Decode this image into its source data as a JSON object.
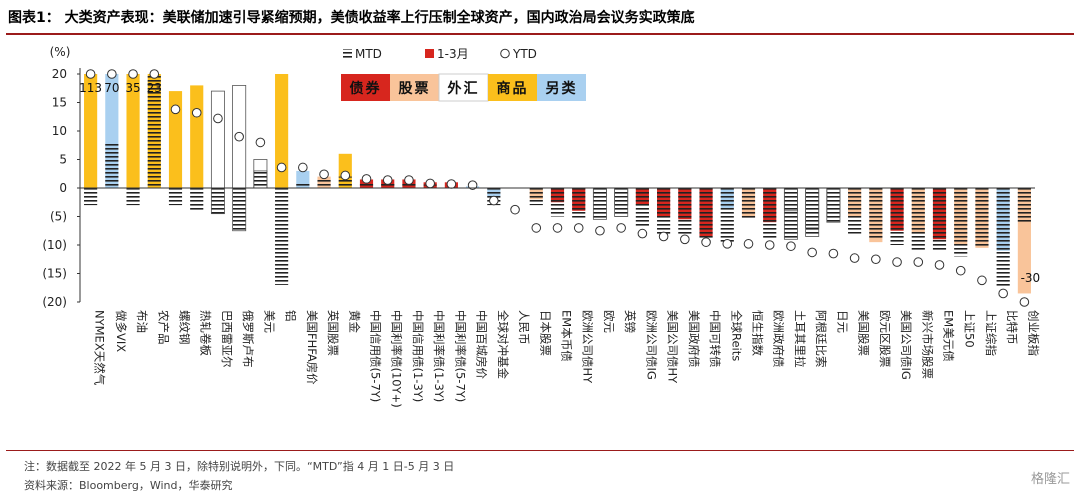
{
  "header": {
    "title": "图表1：  大类资产表现：美联储加速引导紧缩预期，美债收益率上行压制全球资产，国内政治局会议务实政策底"
  },
  "footer": {
    "note": "注：数据截至 2022 年 5 月 3 日，除特别说明外，下同。“MTD”指 4 月 1 日-5 月 3 日",
    "source": "资料来源：Bloomberg，Wind，华泰研究",
    "logo": "格隆汇"
  },
  "colors": {
    "bond": "#d7261e",
    "equity": "#f9c49a",
    "fx": "#ffffff",
    "commodity": "#fbbf1c",
    "alt": "#a9d0f0",
    "axis": "#333333"
  },
  "chart_data": {
    "type": "bar",
    "yunit": "(%)",
    "ylim": [
      -20,
      20
    ],
    "yticks": [
      20,
      15,
      10,
      5,
      0,
      -5,
      -10,
      -15,
      -20
    ],
    "ytick_labels": [
      "20",
      "15",
      "10",
      "5",
      "0",
      "(5)",
      "(10)",
      "(15)",
      "(20)"
    ],
    "legend": [
      {
        "key": "mtd",
        "label": "MTD"
      },
      {
        "key": "q",
        "label": "1-3月"
      },
      {
        "key": "ytd",
        "label": "YTD"
      }
    ],
    "category_legend": [
      {
        "key": "bond",
        "label": "债券"
      },
      {
        "key": "equity",
        "label": "股票"
      },
      {
        "key": "fx",
        "label": "外汇"
      },
      {
        "key": "commodity",
        "label": "商品"
      },
      {
        "key": "alt",
        "label": "另类"
      }
    ],
    "overflow_labels": [
      "113",
      "70",
      "35",
      "23",
      "-30"
    ],
    "categories": [
      "NYMEX天然气",
      "做多VIX",
      "布油",
      "农产品",
      "螺纹钢",
      "热轧卷板",
      "巴西雷亚尔",
      "俄罗斯卢布",
      "美元",
      "铝",
      "美国FHFA房价",
      "英国股票",
      "黄金",
      "中国信用债(5-7Y)",
      "中国利率债(10Y+)",
      "中国信用债(1-3Y)",
      "中国利率债(1-3Y)",
      "中国利率债(5-7Y)",
      "中国百城房价",
      "全球对冲基金",
      "人民币",
      "日本股票",
      "EM本币债",
      "欧洲公司债HY",
      "欧元",
      "英镑",
      "欧洲公司债IG",
      "美国公司债HY",
      "美国政府债",
      "中国可转债",
      "全球Reits",
      "恒生指数",
      "欧洲政府债",
      "土耳其里拉",
      "阿根廷比索",
      "日元",
      "美国股票",
      "欧元区股票",
      "美国公司债IG",
      "新兴市场股票",
      "EM美元债",
      "上证50",
      "上证综指",
      "比特币",
      "创业板指"
    ],
    "asset_class": [
      "commodity",
      "alt",
      "commodity",
      "commodity",
      "commodity",
      "commodity",
      "fx",
      "fx",
      "fx",
      "commodity",
      "alt",
      "equity",
      "commodity",
      "bond",
      "bond",
      "bond",
      "bond",
      "bond",
      "alt",
      "alt",
      "fx",
      "equity",
      "bond",
      "bond",
      "fx",
      "fx",
      "bond",
      "bond",
      "bond",
      "bond",
      "alt",
      "equity",
      "bond",
      "fx",
      "fx",
      "fx",
      "equity",
      "equity",
      "bond",
      "equity",
      "bond",
      "equity",
      "equity",
      "alt",
      "equity"
    ],
    "series": [
      {
        "name": "MTD",
        "values": [
          -3,
          8,
          -3,
          20,
          -3,
          -4,
          -4.5,
          -7.5,
          3,
          -17,
          1,
          1.5,
          2,
          1,
          0.8,
          0.8,
          0.6,
          0.4,
          0.2,
          -3,
          0,
          -3,
          -5,
          -5.2,
          -5.5,
          -5,
          -7,
          -8.2,
          -8.3,
          -9,
          -9.5,
          -5.5,
          -9,
          -9,
          -8.5,
          -6,
          -8,
          -9,
          -10,
          -11,
          -11,
          -12,
          -10.5,
          -17.5,
          -6
        ]
      },
      {
        "name": "1-3月",
        "values": [
          20,
          20,
          20,
          20,
          17,
          18,
          17,
          18,
          5,
          20,
          3,
          2,
          6,
          1.5,
          1.5,
          1.5,
          1,
          1,
          0.3,
          -1.5,
          0,
          -2,
          -2.5,
          -4,
          -1.5,
          -3,
          -3,
          -5,
          -5.5,
          -8.5,
          -3.5,
          -5,
          -6,
          -4,
          -7,
          -5,
          -5,
          -9.5,
          -7.5,
          -8,
          -9,
          -10,
          -10.5,
          -11,
          -18.5
        ]
      },
      {
        "name": "YTD",
        "values": [
          20,
          20,
          20,
          20,
          13.8,
          13.2,
          12.2,
          9,
          8,
          3.6,
          3.6,
          2.4,
          2.2,
          1.6,
          1.4,
          1.4,
          0.8,
          0.7,
          0.5,
          -2.2,
          -3.8,
          -7,
          -7,
          -7,
          -7.5,
          -7,
          -8,
          -8.5,
          -9,
          -9.5,
          -9.8,
          -9.8,
          -10,
          -10.2,
          -11.3,
          -11.5,
          -12.3,
          -12.5,
          -13,
          -13,
          -13.5,
          -14.5,
          -16.2,
          -18.5,
          -20
        ]
      }
    ]
  }
}
